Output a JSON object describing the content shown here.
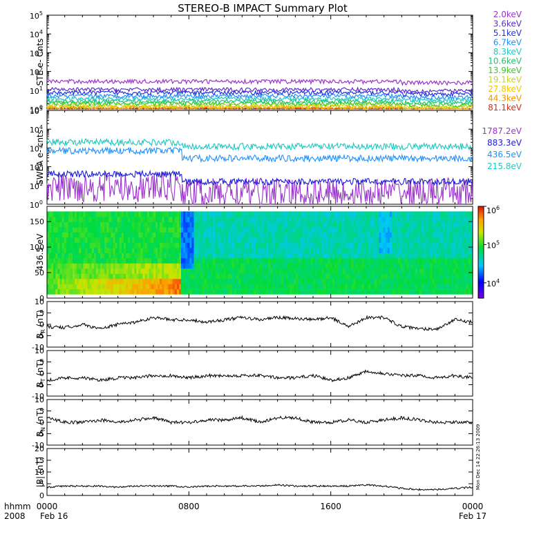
{
  "title": "STEREO-B IMPACT Summary Plot",
  "stamp": "Mon Dec 14 22:26:13 2009",
  "x_axis": {
    "row1_label": "hhmm",
    "row2_label": "2008",
    "ticks": [
      {
        "hour": 0,
        "time": "0000",
        "date": "Feb 16"
      },
      {
        "hour": 8,
        "time": "0800",
        "date": ""
      },
      {
        "hour": 16,
        "time": "1600",
        "date": ""
      },
      {
        "hour": 24,
        "time": "0000",
        "date": "Feb 17"
      }
    ],
    "range_hours": [
      0,
      24
    ]
  },
  "chart_data": [
    {
      "id": "ste",
      "type": "line",
      "ylabel": "STE e- Cnts",
      "yscale": "log",
      "ylim_exp": [
        0,
        5
      ],
      "y_tick_exps": [
        0,
        1,
        2,
        3,
        4,
        5
      ],
      "channels": [
        {
          "label": "2.0keV",
          "color": "#9a32cd",
          "level": 30
        },
        {
          "label": "3.6keV",
          "color": "#5a2dc8",
          "level": 11
        },
        {
          "label": "5.1keV",
          "color": "#2233dd",
          "level": 7.5
        },
        {
          "label": "6.7keV",
          "color": "#1e90ff",
          "level": 5
        },
        {
          "label": "8.3keV",
          "color": "#20c8c0",
          "level": 3.5
        },
        {
          "label": "10.6keV",
          "color": "#22c46a",
          "level": 2.6
        },
        {
          "label": "13.9keV",
          "color": "#3cc828",
          "level": 2.0
        },
        {
          "label": "19.1keV",
          "color": "#c8d21e",
          "level": 1.6
        },
        {
          "label": "27.8keV",
          "color": "#f0c800",
          "level": 1.3
        },
        {
          "label": "44.3keV",
          "color": "#f09600",
          "level": 1.15
        },
        {
          "label": "81.1keV",
          "color": "#dc2814",
          "level": 1.05
        }
      ]
    },
    {
      "id": "swea",
      "type": "line",
      "ylabel": "SWEA e- cnts",
      "yscale": "log",
      "ylim_exp": [
        0,
        5
      ],
      "y_tick_exps": [
        0,
        1,
        2,
        3,
        4,
        5
      ],
      "channels": [
        {
          "label": "1787.2eV",
          "color": "#9a32cd",
          "before": 8,
          "after": 4
        },
        {
          "label": "883.3eV",
          "color": "#1a1adc",
          "before": 40,
          "after": 16
        },
        {
          "label": "436.5eV",
          "color": "#1e90ff",
          "before": 700,
          "after": 280
        },
        {
          "label": "215.8eV",
          "color": "#20c8c0",
          "before": 2000,
          "after": 1200
        }
      ],
      "step_hour": 7.6
    },
    {
      "id": "pad",
      "type": "heatmap",
      "ylabel": "436.5 eV",
      "ylim": [
        0,
        180
      ],
      "y_ticks": [
        0,
        50,
        100,
        150
      ],
      "colorbar": {
        "scale": "log",
        "min_exp": 3.6,
        "max_exp": 6,
        "tick_exps": [
          4,
          5,
          6
        ]
      }
    },
    {
      "id": "br",
      "type": "line",
      "ylabel_main": "B",
      "ylabel_sub": "R",
      "ylabel_unit": "(nT)",
      "ylim": [
        -10,
        10
      ],
      "y_ticks": [
        -10,
        -5,
        0,
        5,
        10
      ],
      "x": [
        0,
        1,
        2,
        3,
        4,
        5,
        6,
        7,
        8,
        9,
        10,
        11,
        12,
        13,
        14,
        15,
        16,
        17,
        18,
        19,
        20,
        21,
        22,
        23,
        24
      ],
      "y": [
        -1,
        -1.5,
        0,
        -2,
        0,
        1,
        3,
        2,
        2,
        1,
        2,
        3,
        2,
        3,
        2.5,
        2,
        3,
        -1,
        3,
        3,
        -1,
        -2,
        -2,
        2,
        1
      ]
    },
    {
      "id": "bt",
      "type": "line",
      "ylabel_main": "B",
      "ylabel_sub": "T",
      "ylabel_unit": "(nT)",
      "ylim": [
        -10,
        10
      ],
      "y_ticks": [
        -10,
        -5,
        0,
        5,
        10
      ],
      "x": [
        0,
        1,
        2,
        3,
        4,
        5,
        6,
        7,
        8,
        9,
        10,
        11,
        12,
        13,
        14,
        15,
        16,
        17,
        18,
        19,
        20,
        21,
        22,
        23,
        24
      ],
      "y": [
        -3,
        -2,
        -2,
        -3,
        -2,
        -2,
        -1,
        -1,
        -2,
        -1,
        -1,
        -1,
        -1,
        -2,
        -2,
        -1,
        -3,
        -2,
        1,
        0,
        -1,
        -1,
        -2,
        -1,
        -2
      ]
    },
    {
      "id": "bn",
      "type": "line",
      "ylabel_main": "B",
      "ylabel_sub": "N",
      "ylabel_unit": "(nT)",
      "ylim": [
        -10,
        10
      ],
      "y_ticks": [
        -10,
        -5,
        0,
        5,
        10
      ],
      "x": [
        0,
        1,
        2,
        3,
        4,
        5,
        6,
        7,
        8,
        9,
        10,
        11,
        12,
        13,
        14,
        15,
        16,
        17,
        18,
        19,
        20,
        21,
        22,
        23,
        24
      ],
      "y": [
        2,
        0,
        0,
        1,
        0,
        1,
        2,
        0,
        0,
        1,
        1,
        2,
        0,
        2,
        2,
        0,
        0,
        1,
        0,
        1,
        2,
        1,
        0,
        0,
        0
      ]
    },
    {
      "id": "bmag",
      "type": "line",
      "ylabel": "|B| (nT)",
      "ylim": [
        0,
        20
      ],
      "y_ticks": [
        0,
        5,
        10,
        15,
        20
      ],
      "x": [
        0,
        1,
        2,
        3,
        4,
        5,
        6,
        7,
        8,
        9,
        10,
        11,
        12,
        13,
        14,
        15,
        16,
        17,
        18,
        19,
        20,
        21,
        22,
        23,
        24
      ],
      "y": [
        3.5,
        4,
        4,
        4,
        3.5,
        4,
        4,
        4,
        3.5,
        4,
        4,
        4,
        4,
        4.5,
        4,
        4,
        4,
        4,
        4.5,
        4,
        3,
        2.5,
        2.5,
        3,
        3.5
      ]
    }
  ]
}
